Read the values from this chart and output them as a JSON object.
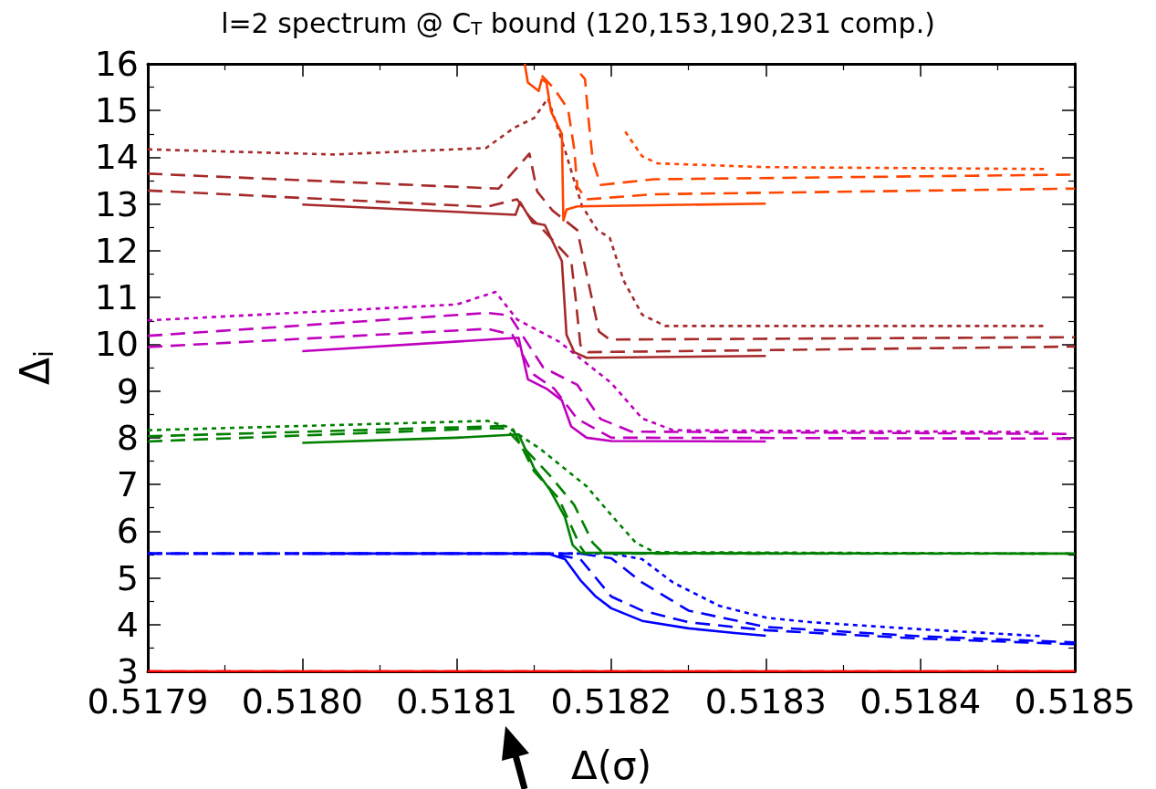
{
  "chart_data": {
    "type": "line",
    "title": "l=2 spectrum @ C$_{T}$ bound (120,153,190,231 comp.)",
    "xlabel": "Δ(σ)",
    "ylabel": "Δ$_{i}$",
    "xlim": [
      0.5179,
      0.5185
    ],
    "xticks": [
      {
        "value": 0.5179,
        "label": "0.5179"
      },
      {
        "value": 0.518,
        "label": "0.5180"
      },
      {
        "value": 0.5181,
        "label": "0.5181"
      },
      {
        "value": 0.5182,
        "label": "0.5182"
      },
      {
        "value": 0.5183,
        "label": "0.5183"
      },
      {
        "value": 0.5184,
        "label": "0.5184"
      },
      {
        "value": 0.5185,
        "label": "0.5185"
      }
    ],
    "ylim": [
      3,
      16
    ],
    "yticks": [
      3,
      4,
      5,
      6,
      7,
      8,
      9,
      10,
      11,
      12,
      13,
      14,
      15,
      16
    ],
    "grid": false,
    "marker": "none",
    "series": [
      {
        "color": "#ff0000",
        "line_style": "solid",
        "x": [
          0.5179,
          0.5185
        ],
        "values": [
          3.0,
          3.0
        ]
      },
      {
        "color": "#ff0000",
        "line_style": "dashed",
        "x": [
          0.5179,
          0.5185
        ],
        "values": [
          3.0,
          3.0
        ]
      },
      {
        "color": "#0000ff",
        "line_style": "solid",
        "x": [
          0.518,
          0.51814,
          0.51816,
          0.51817,
          0.51818,
          0.51819,
          0.5182,
          0.51822,
          0.51825,
          0.51828,
          0.5183
        ],
        "values": [
          5.52,
          5.52,
          5.51,
          5.4,
          4.95,
          4.6,
          4.35,
          4.08,
          3.92,
          3.82,
          3.76
        ]
      },
      {
        "color": "#0000ff",
        "line_style": "dashed",
        "x": [
          0.5179,
          0.51816,
          0.51818,
          0.51819,
          0.5182,
          0.51822,
          0.51825,
          0.5183,
          0.5184,
          0.5185
        ],
        "values": [
          5.52,
          5.52,
          5.4,
          5.0,
          4.6,
          4.3,
          4.05,
          3.88,
          3.7,
          3.58
        ]
      },
      {
        "color": "#0000ff",
        "line_style": "dashed",
        "x": [
          0.5179,
          0.51818,
          0.5182,
          0.51822,
          0.51825,
          0.5183,
          0.5184,
          0.5185
        ],
        "values": [
          5.52,
          5.52,
          5.42,
          4.9,
          4.3,
          3.95,
          3.75,
          3.62
        ]
      },
      {
        "color": "#0000ff",
        "line_style": "dotted",
        "x": [
          0.5179,
          0.5182,
          0.51822,
          0.51824,
          0.51827,
          0.5183,
          0.51833,
          0.5184,
          0.51848
        ],
        "values": [
          5.52,
          5.52,
          5.4,
          4.9,
          4.4,
          4.15,
          4.05,
          3.9,
          3.75
        ]
      },
      {
        "color": "#008000",
        "line_style": "solid",
        "x": [
          0.518,
          0.5181,
          0.51814,
          0.51815,
          0.51816,
          0.51817,
          0.518175,
          0.51818,
          0.5183
        ],
        "values": [
          7.89,
          8.0,
          8.07,
          7.35,
          6.9,
          6.3,
          5.7,
          5.54,
          5.52
        ]
      },
      {
        "color": "#008000",
        "line_style": "dashed",
        "x": [
          0.5179,
          0.51812,
          0.518136,
          0.51815,
          0.518166,
          0.51818,
          0.518183,
          0.5185
        ],
        "values": [
          7.92,
          8.2,
          8.2,
          7.28,
          6.7,
          5.67,
          5.53,
          5.52
        ]
      },
      {
        "color": "#008000",
        "line_style": "dashed",
        "x": [
          0.5179,
          0.51813,
          0.51816,
          0.518176,
          0.518188,
          0.518195,
          0.5185
        ],
        "values": [
          8.03,
          8.25,
          7.2,
          6.56,
          5.75,
          5.52,
          5.52
        ]
      },
      {
        "color": "#008000",
        "line_style": "dotted",
        "x": [
          0.5179,
          0.51812,
          0.518132,
          0.518154,
          0.518184,
          0.518203,
          0.518216,
          0.518228,
          0.51848
        ],
        "values": [
          8.16,
          8.36,
          8.24,
          7.76,
          6.96,
          6.23,
          5.75,
          5.55,
          5.52
        ]
      },
      {
        "color": "#bf00bf",
        "line_style": "solid",
        "x": [
          0.518,
          0.51814,
          0.518146,
          0.518158,
          0.518168,
          0.518174,
          0.518184,
          0.5182,
          0.5183
        ],
        "values": [
          9.85,
          10.14,
          9.25,
          9.05,
          8.8,
          8.24,
          8.0,
          7.93,
          7.92
        ]
      },
      {
        "color": "#bf00bf",
        "line_style": "dashed",
        "x": [
          0.5179,
          0.51812,
          0.518136,
          0.518149,
          0.518163,
          0.518178,
          0.5182,
          0.5185
        ],
        "values": [
          9.94,
          10.33,
          10.2,
          9.37,
          9.05,
          8.4,
          8.0,
          7.98
        ]
      },
      {
        "color": "#bf00bf",
        "line_style": "dashed",
        "x": [
          0.5179,
          0.51812,
          0.518134,
          0.518156,
          0.518178,
          0.518193,
          0.518213,
          0.5185
        ],
        "values": [
          10.18,
          10.67,
          10.62,
          9.5,
          9.13,
          8.4,
          8.13,
          8.08
        ]
      },
      {
        "color": "#bf00bf",
        "line_style": "dotted",
        "x": [
          0.5179,
          0.5181,
          0.518125,
          0.518139,
          0.518166,
          0.5182,
          0.51822,
          0.51824,
          0.51848
        ],
        "values": [
          10.51,
          10.85,
          11.12,
          10.53,
          10.06,
          9.17,
          8.41,
          8.16,
          8.12
        ]
      },
      {
        "color": "#a52a2a",
        "line_style": "solid",
        "x": [
          0.518,
          0.518138,
          0.518141,
          0.518149,
          0.518157,
          0.518168,
          0.518171,
          0.518176,
          0.518184,
          0.5183
        ],
        "values": [
          12.99,
          12.77,
          13.04,
          12.6,
          12.55,
          11.78,
          10.2,
          9.83,
          9.71,
          9.75
        ]
      },
      {
        "color": "#a52a2a",
        "line_style": "dashed",
        "x": [
          0.5179,
          0.518119,
          0.518139,
          0.518147,
          0.518155,
          0.518174,
          0.518177,
          0.51818,
          0.518185,
          0.5185
        ],
        "values": [
          13.29,
          12.94,
          13.1,
          12.73,
          12.48,
          11.8,
          10.95,
          9.98,
          9.83,
          9.95
        ]
      },
      {
        "color": "#a52a2a",
        "line_style": "dashed",
        "x": [
          0.5179,
          0.518127,
          0.518147,
          0.518152,
          0.518162,
          0.518178,
          0.518192,
          0.518199,
          0.5185
        ],
        "values": [
          13.65,
          13.33,
          14.08,
          13.27,
          12.86,
          12.44,
          10.27,
          10.1,
          10.15
        ]
      },
      {
        "color": "#a52a2a",
        "line_style": "dotted",
        "x": [
          0.5179,
          0.518021,
          0.518119,
          0.518137,
          0.51815,
          0.518159,
          0.518169,
          0.518181,
          0.518191,
          0.518199,
          0.518208,
          0.51822,
          0.518235,
          0.51848
        ],
        "values": [
          14.17,
          14.06,
          14.2,
          14.63,
          14.84,
          15.26,
          14.26,
          12.96,
          12.44,
          12.28,
          11.36,
          10.63,
          10.39,
          10.39
        ]
      },
      {
        "color": "#ff4500",
        "line_style": "solid",
        "x": [
          0.518144,
          0.518146,
          0.518153,
          0.518155,
          0.518158,
          0.518161,
          0.518168,
          0.518169,
          0.518171,
          0.518178,
          0.5183
        ],
        "values": [
          16.0,
          15.6,
          15.42,
          15.67,
          15.6,
          14.98,
          14.5,
          12.65,
          12.88,
          12.95,
          13.01
        ]
      },
      {
        "color": "#ff4500",
        "line_style": "dashed",
        "x": [
          0.518155,
          0.518163,
          0.518172,
          0.518176,
          0.518178,
          0.518184,
          0.518228,
          0.5185
        ],
        "values": [
          15.75,
          15.47,
          15.03,
          14.18,
          13.37,
          13.1,
          13.21,
          13.33
        ]
      },
      {
        "color": "#ff4500",
        "line_style": "dashed",
        "x": [
          0.51818,
          0.518183,
          0.518185,
          0.518188,
          0.518193,
          0.518228,
          0.5185
        ],
        "values": [
          15.79,
          15.67,
          14.9,
          13.93,
          13.41,
          13.53,
          13.63
        ]
      },
      {
        "color": "#ff4500",
        "line_style": "dotted",
        "x": [
          0.518209,
          0.51822,
          0.51823,
          0.5183,
          0.51848
        ],
        "values": [
          14.55,
          14.02,
          13.87,
          13.79,
          13.75
        ]
      }
    ]
  }
}
